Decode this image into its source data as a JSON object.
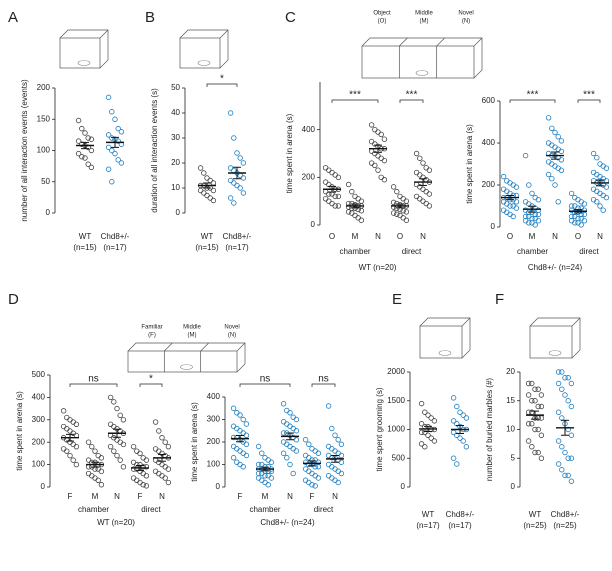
{
  "chart_data": [
    {
      "type": "dot",
      "panel": "A",
      "ylabel": "number of all interaction events (events)",
      "ylim": [
        0,
        200
      ],
      "yticks": [
        0,
        50,
        100,
        150,
        200
      ],
      "categories": [
        "WT",
        "Chd8+/-"
      ],
      "n_labels": [
        "(n=15)",
        "(n=17)"
      ],
      "colors": [
        "#444444",
        "#1f7fc0"
      ],
      "values": [
        [
          148,
          135,
          128,
          120,
          118,
          115,
          110,
          108,
          105,
          100,
          95,
          90,
          88,
          78,
          73
        ],
        [
          185,
          162,
          150,
          135,
          130,
          125,
          120,
          118,
          115,
          110,
          105,
          100,
          95,
          85,
          80,
          70,
          50
        ]
      ],
      "means": [
        108,
        113
      ],
      "sems": [
        5,
        8
      ]
    },
    {
      "type": "dot",
      "panel": "B",
      "ylabel": "duration of all interaction events (s)",
      "ylim": [
        0,
        50
      ],
      "yticks": [
        0,
        10,
        20,
        30,
        40,
        50
      ],
      "categories": [
        "WT",
        "Chd8+/-"
      ],
      "n_labels": [
        "(n=15)",
        "(n=17)"
      ],
      "colors": [
        "#444444",
        "#1f7fc0"
      ],
      "significance": "*",
      "values": [
        [
          18,
          16,
          14,
          13,
          12,
          11,
          11,
          10,
          10,
          9,
          9,
          8,
          7,
          6,
          5
        ],
        [
          40,
          30,
          24,
          22,
          20,
          18,
          17,
          16,
          15,
          14,
          13,
          12,
          11,
          10,
          8,
          6,
          4
        ]
      ],
      "means": [
        11,
        16
      ],
      "sems": [
        1,
        2.3
      ]
    },
    {
      "type": "grouped-dot",
      "panel": "C",
      "ylabel": "time spent in arena (s)",
      "ylim": [
        0,
        600
      ],
      "yticks": [
        0,
        200,
        400
      ],
      "color": "#444444",
      "subtitle": "WT (n=20)",
      "arena_labels": [
        [
          "Object",
          "(O)"
        ],
        [
          "Middle",
          "(M)"
        ],
        [
          "Novel",
          "(N)"
        ]
      ],
      "groups": [
        {
          "name": "chamber",
          "categories": [
            "O",
            "M",
            "N"
          ],
          "significance": "***",
          "means": [
            150,
            80,
            320
          ],
          "sems": [
            12,
            8,
            15
          ],
          "values": [
            [
              240,
              230,
              220,
              210,
              200,
              180,
              170,
              160,
              150,
              150,
              140,
              130,
              130,
              120,
              120,
              110,
              100,
              90,
              80,
              80
            ],
            [
              170,
              140,
              120,
              110,
              100,
              90,
              90,
              85,
              80,
              80,
              75,
              70,
              70,
              65,
              60,
              55,
              50,
              40,
              30,
              20
            ],
            [
              420,
              400,
              390,
              380,
              360,
              350,
              340,
              330,
              320,
              320,
              310,
              300,
              290,
              280,
              270,
              260,
              250,
              230,
              200,
              190
            ]
          ]
        },
        {
          "name": "direct",
          "categories": [
            "O",
            "N"
          ],
          "significance": "***",
          "means": [
            80,
            180
          ],
          "sems": [
            8,
            14
          ],
          "values": [
            [
              160,
              140,
              120,
              110,
              100,
              95,
              90,
              85,
              80,
              80,
              75,
              70,
              65,
              60,
              55,
              50,
              45,
              40,
              30,
              20
            ],
            [
              300,
              280,
              260,
              240,
              230,
              220,
              210,
              200,
              190,
              180,
              170,
              160,
              150,
              140,
              130,
              120,
              110,
              100,
              90,
              80
            ]
          ]
        }
      ]
    },
    {
      "type": "grouped-dot",
      "ylabel": "time spent in arena (s)",
      "ylim": [
        0,
        600
      ],
      "yticks": [
        0,
        200,
        400,
        600
      ],
      "color": "#1f7fc0",
      "subtitle": "Chd8+/- (n=24)",
      "groups": [
        {
          "name": "chamber",
          "categories": [
            "O",
            "M",
            "N"
          ],
          "significance": "***",
          "means": [
            140,
            85,
            340
          ],
          "sems": [
            10,
            14,
            17
          ],
          "values": [
            [
              240,
              220,
              210,
              200,
              190,
              180,
              170,
              160,
              150,
              150,
              140,
              140,
              130,
              130,
              120,
              120,
              110,
              100,
              100,
              90,
              80,
              70,
              60,
              50
            ],
            [
              340,
              200,
              160,
              140,
              130,
              120,
              110,
              100,
              90,
              80,
              80,
              70,
              70,
              60,
              60,
              50,
              50,
              40,
              40,
              30,
              30,
              20,
              20,
              10
            ],
            [
              520,
              470,
              450,
              430,
              410,
              400,
              390,
              380,
              370,
              360,
              350,
              340,
              340,
              330,
              320,
              310,
              300,
              290,
              280,
              270,
              250,
              230,
              200,
              120
            ]
          ]
        },
        {
          "name": "direct",
          "categories": [
            "O",
            "N"
          ],
          "significance": "***",
          "means": [
            75,
            210
          ],
          "sems": [
            8,
            14
          ],
          "values": [
            [
              160,
              140,
              130,
              120,
              110,
              100,
              100,
              90,
              90,
              80,
              80,
              70,
              70,
              60,
              60,
              50,
              50,
              40,
              40,
              30,
              30,
              20,
              20,
              10
            ],
            [
              350,
              330,
              300,
              290,
              280,
              260,
              250,
              240,
              230,
              220,
              220,
              210,
              210,
              200,
              190,
              180,
              170,
              160,
              150,
              140,
              130,
              120,
              100,
              80
            ]
          ]
        }
      ]
    },
    {
      "type": "grouped-dot",
      "panel": "D",
      "ylabel": "time spent in arena (s)",
      "ylim": [
        0,
        500
      ],
      "yticks": [
        0,
        100,
        200,
        300,
        400,
        500
      ],
      "color": "#444444",
      "subtitle": "WT (n=20)",
      "arena_labels": [
        [
          "Familiar",
          "(F)"
        ],
        [
          "Middle",
          "(M)"
        ],
        [
          "Novel",
          "(N)"
        ]
      ],
      "groups": [
        {
          "name": "chamber",
          "categories": [
            "F",
            "M",
            "N"
          ],
          "significance": "ns",
          "means": [
            220,
            100,
            240
          ],
          "sems": [
            15,
            11,
            18
          ],
          "values": [
            [
              340,
              310,
              300,
              290,
              280,
              270,
              260,
              250,
              240,
              230,
              220,
              210,
              200,
              190,
              180,
              170,
              160,
              140,
              120,
              100
            ],
            [
              200,
              180,
              160,
              140,
              130,
              120,
              110,
              110,
              100,
              100,
              90,
              90,
              80,
              80,
              70,
              60,
              50,
              40,
              30,
              10
            ],
            [
              400,
              380,
              350,
              320,
              300,
              280,
              270,
              260,
              250,
              240,
              230,
              220,
              210,
              200,
              190,
              180,
              160,
              140,
              120,
              90
            ]
          ]
        },
        {
          "name": "direct",
          "categories": [
            "F",
            "N"
          ],
          "significance": "*",
          "means": [
            85,
            130
          ],
          "sems": [
            11,
            15
          ],
          "values": [
            [
              180,
              160,
              150,
              130,
              120,
              110,
              100,
              100,
              90,
              90,
              80,
              80,
              70,
              60,
              50,
              40,
              30,
              20,
              10,
              5
            ],
            [
              290,
              250,
              220,
              200,
              180,
              170,
              160,
              150,
              140,
              130,
              120,
              110,
              100,
              90,
              80,
              70,
              60,
              50,
              40,
              20
            ]
          ]
        }
      ]
    },
    {
      "type": "grouped-dot",
      "ylabel": "time spent in arena (s)",
      "ylim": [
        0,
        400
      ],
      "yticks": [
        0,
        100,
        200,
        300,
        400
      ],
      "color": "#1f7fc0",
      "subtitle": "Chd8+/- (n=24)",
      "groups": [
        {
          "name": "chamber",
          "categories": [
            "F",
            "M",
            "N"
          ],
          "significance": "ns",
          "means": [
            215,
            80,
            225
          ],
          "sems": [
            14,
            8,
            15
          ],
          "values": [
            [
              350,
              330,
              320,
              300,
              280,
              270,
              260,
              250,
              240,
              230,
              220,
              220,
              210,
              200,
              190,
              180,
              170,
              160,
              150,
              140,
              130,
              110,
              100,
              90
            ],
            [
              180,
              150,
              130,
              120,
              110,
              100,
              100,
              90,
              90,
              80,
              80,
              80,
              70,
              70,
              70,
              60,
              60,
              50,
              50,
              40,
              40,
              30,
              20,
              10
            ],
            [
              370,
              340,
              330,
              310,
              300,
              290,
              280,
              270,
              260,
              250,
              240,
              240,
              230,
              220,
              210,
              200,
              190,
              180,
              170,
              160,
              150,
              130,
              100,
              60
            ]
          ]
        },
        {
          "name": "direct",
          "categories": [
            "F",
            "N"
          ],
          "significance": "ns",
          "means": [
            105,
            125
          ],
          "sems": [
            11,
            15
          ],
          "values": [
            [
              210,
              190,
              170,
              160,
              150,
              140,
              130,
              120,
              120,
              110,
              110,
              100,
              100,
              90,
              90,
              80,
              70,
              60,
              50,
              40,
              30,
              20,
              10,
              5
            ],
            [
              360,
              260,
              230,
              210,
              190,
              180,
              170,
              160,
              150,
              140,
              140,
              130,
              130,
              120,
              110,
              100,
              90,
              80,
              70,
              60,
              50,
              40,
              30,
              20
            ]
          ]
        }
      ]
    },
    {
      "type": "dot",
      "panel": "E",
      "ylabel": "time spent grooming (s)",
      "ylim": [
        0,
        2000
      ],
      "yticks": [
        0,
        500,
        1000,
        1500,
        2000
      ],
      "categories": [
        "WT",
        "Chd8+/-"
      ],
      "n_labels": [
        "(n=17)",
        "(n=17)"
      ],
      "colors": [
        "#444444",
        "#1f7fc0"
      ],
      "values": [
        [
          1450,
          1300,
          1250,
          1200,
          1150,
          1100,
          1050,
          1050,
          1000,
          1000,
          950,
          950,
          900,
          850,
          800,
          750,
          700
        ],
        [
          1550,
          1400,
          1300,
          1250,
          1200,
          1150,
          1100,
          1050,
          1000,
          1000,
          950,
          900,
          850,
          800,
          700,
          500,
          400
        ]
      ],
      "means": [
        1010,
        1000
      ],
      "sems": [
        45,
        70
      ]
    },
    {
      "type": "dot",
      "panel": "F",
      "ylabel": "number of buried marbles (#)",
      "ylim": [
        0,
        20
      ],
      "yticks": [
        0,
        5,
        10,
        15,
        20
      ],
      "categories": [
        "WT",
        "Chd8+/-"
      ],
      "n_labels": [
        "(n=25)",
        "(n=25)"
      ],
      "colors": [
        "#444444",
        "#1f7fc0"
      ],
      "values": [
        [
          18,
          18,
          17,
          17,
          16,
          16,
          15,
          15,
          14,
          14,
          13,
          13,
          12,
          12,
          12,
          11,
          11,
          10,
          10,
          9,
          8,
          7,
          6,
          6,
          5
        ],
        [
          20,
          20,
          19,
          19,
          18,
          18,
          17,
          16,
          15,
          14,
          13,
          12,
          11,
          10,
          9,
          8,
          7,
          6,
          5,
          5,
          4,
          3,
          2,
          2,
          1
        ]
      ],
      "means": [
        12.5,
        10.3
      ],
      "sems": [
        0.7,
        1.3
      ]
    }
  ]
}
